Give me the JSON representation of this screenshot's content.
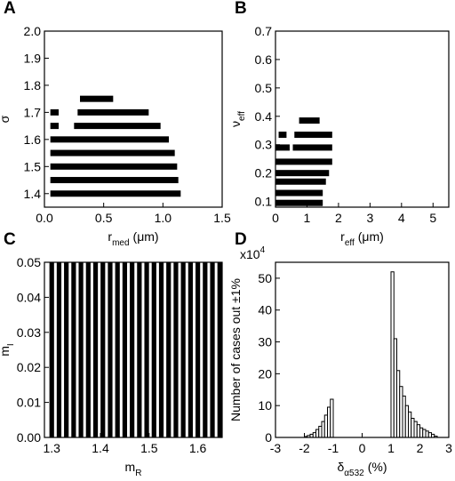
{
  "chart_data": [
    {
      "type": "range",
      "panel": "A",
      "color": "#000000",
      "ylabel": "σ",
      "xlabel": {
        "text": "r",
        "sub": "med",
        "after": "(μm)"
      },
      "xlim": [
        0,
        1.5
      ],
      "xticks": [
        {
          "value": 0,
          "label": "0.0"
        },
        0.5,
        {
          "value": 1,
          "label": "1.0"
        },
        1.5
      ],
      "ylim": [
        1.35,
        2.0
      ],
      "yticks": [
        1.4,
        1.5,
        1.6,
        1.7,
        1.8,
        1.9,
        {
          "value": 2,
          "label": "2.0"
        }
      ],
      "segments": [
        {
          "y": 1.4,
          "x": [
            0.05,
            1.15
          ]
        },
        {
          "y": 1.45,
          "x": [
            0.05,
            1.13
          ]
        },
        {
          "y": 1.5,
          "x": [
            0.05,
            1.12
          ]
        },
        {
          "y": 1.55,
          "x": [
            0.05,
            1.1
          ]
        },
        {
          "y": 1.6,
          "x": [
            0.05,
            1.05
          ]
        },
        {
          "y": 1.65,
          "x": [
            0.05,
            0.12
          ]
        },
        {
          "y": 1.65,
          "x": [
            0.25,
            0.98
          ]
        },
        {
          "y": 1.7,
          "x": [
            0.05,
            0.12
          ]
        },
        {
          "y": 1.7,
          "x": [
            0.28,
            0.88
          ]
        },
        {
          "y": 1.75,
          "x": [
            0.3,
            0.58
          ]
        }
      ]
    },
    {
      "type": "range",
      "panel": "B",
      "color": "#000000",
      "ylabel": {
        "text": "ν",
        "sub": "eff"
      },
      "xlabel": {
        "text": "r",
        "sub": "eff",
        "after": "(μm)"
      },
      "xlim": [
        0,
        5.5
      ],
      "xticks": [
        0,
        1,
        2,
        3,
        4,
        5
      ],
      "ylim": [
        0.08,
        0.7
      ],
      "yticks": [
        0.1,
        0.2,
        0.3,
        0.4,
        0.5,
        0.6,
        0.7
      ],
      "segments": [
        {
          "y": 0.095,
          "x": [
            0,
            1.5
          ]
        },
        {
          "y": 0.13,
          "x": [
            0,
            1.5
          ]
        },
        {
          "y": 0.17,
          "x": [
            0,
            1.6
          ]
        },
        {
          "y": 0.2,
          "x": [
            0,
            1.7
          ]
        },
        {
          "y": 0.24,
          "x": [
            0,
            1.8
          ]
        },
        {
          "y": 0.29,
          "x": [
            0,
            0.45
          ]
        },
        {
          "y": 0.29,
          "x": [
            0.55,
            1.8
          ]
        },
        {
          "y": 0.335,
          "x": [
            0.1,
            0.35
          ]
        },
        {
          "y": 0.335,
          "x": [
            0.6,
            1.8
          ]
        },
        {
          "y": 0.385,
          "x": [
            0.75,
            1.4
          ]
        }
      ]
    },
    {
      "type": "range",
      "panel": "C",
      "color": "#000000",
      "ylabel": {
        "text": "m",
        "sub": "I"
      },
      "xlabel": {
        "text": "m",
        "sub": "R"
      },
      "xlim": [
        1.285,
        1.65
      ],
      "xticks": [
        1.3,
        1.4,
        1.5,
        1.6
      ],
      "ylim": [
        0,
        0.05
      ],
      "yticks": [
        {
          "value": 0,
          "label": "0.00"
        },
        0.01,
        0.02,
        0.03,
        0.04,
        0.05
      ],
      "segments": [
        {
          "x": 1.3,
          "y": [
            0,
            0.05
          ]
        },
        {
          "x": 1.315,
          "y": [
            0,
            0.05
          ]
        },
        {
          "x": 1.33,
          "y": [
            0,
            0.05
          ]
        },
        {
          "x": 1.345,
          "y": [
            0,
            0.05
          ]
        },
        {
          "x": 1.36,
          "y": [
            0,
            0.05
          ]
        },
        {
          "x": 1.375,
          "y": [
            0,
            0.05
          ]
        },
        {
          "x": 1.39,
          "y": [
            0,
            0.05
          ]
        },
        {
          "x": 1.405,
          "y": [
            0,
            0.05
          ]
        },
        {
          "x": 1.42,
          "y": [
            0,
            0.05
          ]
        },
        {
          "x": 1.435,
          "y": [
            0,
            0.05
          ]
        },
        {
          "x": 1.45,
          "y": [
            0,
            0.05
          ]
        },
        {
          "x": 1.465,
          "y": [
            0,
            0.05
          ]
        },
        {
          "x": 1.48,
          "y": [
            0,
            0.05
          ]
        },
        {
          "x": 1.495,
          "y": [
            0,
            0.05
          ]
        },
        {
          "x": 1.51,
          "y": [
            0,
            0.05
          ]
        },
        {
          "x": 1.525,
          "y": [
            0,
            0.05
          ]
        },
        {
          "x": 1.54,
          "y": [
            0,
            0.05
          ]
        },
        {
          "x": 1.555,
          "y": [
            0,
            0.05
          ]
        },
        {
          "x": 1.57,
          "y": [
            0,
            0.05
          ]
        },
        {
          "x": 1.585,
          "y": [
            0,
            0.05
          ]
        },
        {
          "x": 1.6,
          "y": [
            0,
            0.05
          ]
        },
        {
          "x": 1.615,
          "y": [
            0,
            0.05
          ]
        },
        {
          "x": 1.63,
          "y": [
            0,
            0.05
          ]
        },
        {
          "x": 1.645,
          "y": [
            0,
            0.05
          ]
        }
      ]
    },
    {
      "type": "histogram",
      "panel": "D",
      "color": "#ffffff",
      "ylabel": "Number of cases out ±1%",
      "multiplier": {
        "text": "x10",
        "sup": "4"
      },
      "xlabel": {
        "text": "δ",
        "sub": "α532",
        "after": "(%)"
      },
      "xlim": [
        -3,
        3
      ],
      "xticks": [
        -3,
        -2,
        -1,
        0,
        1,
        2,
        3
      ],
      "ylim": [
        0,
        55
      ],
      "yticks": [
        0,
        10,
        20,
        30,
        40,
        50
      ],
      "bins": [
        -2,
        -1.9,
        -1.8,
        -1.7,
        -1.6,
        -1.5,
        -1.4,
        -1.3,
        -1.2,
        -1.1,
        -1,
        -0.9,
        -0.8,
        -0.7,
        -0.6,
        -0.5,
        -0.4,
        -0.3,
        -0.2,
        -0.1,
        0,
        0.1,
        0.2,
        0.3,
        0.4,
        0.5,
        0.6,
        0.7,
        0.8,
        0.9,
        1,
        1.1,
        1.2,
        1.3,
        1.4,
        1.5,
        1.6,
        1.7,
        1.8,
        1.9,
        2,
        2.1,
        2.2,
        2.3,
        2.4,
        2.5,
        2.6
      ],
      "counts": [
        0.3,
        0.6,
        1,
        1.5,
        2.5,
        3.5,
        5,
        7,
        9.5,
        12,
        0,
        0,
        0,
        0,
        0,
        0,
        0,
        0,
        0,
        0,
        0,
        0,
        0,
        0,
        0,
        0,
        0,
        0,
        0,
        0,
        52,
        31,
        21,
        16,
        13,
        10,
        8,
        6,
        5,
        4,
        3,
        2.5,
        2,
        1.5,
        1,
        0.4
      ]
    }
  ]
}
